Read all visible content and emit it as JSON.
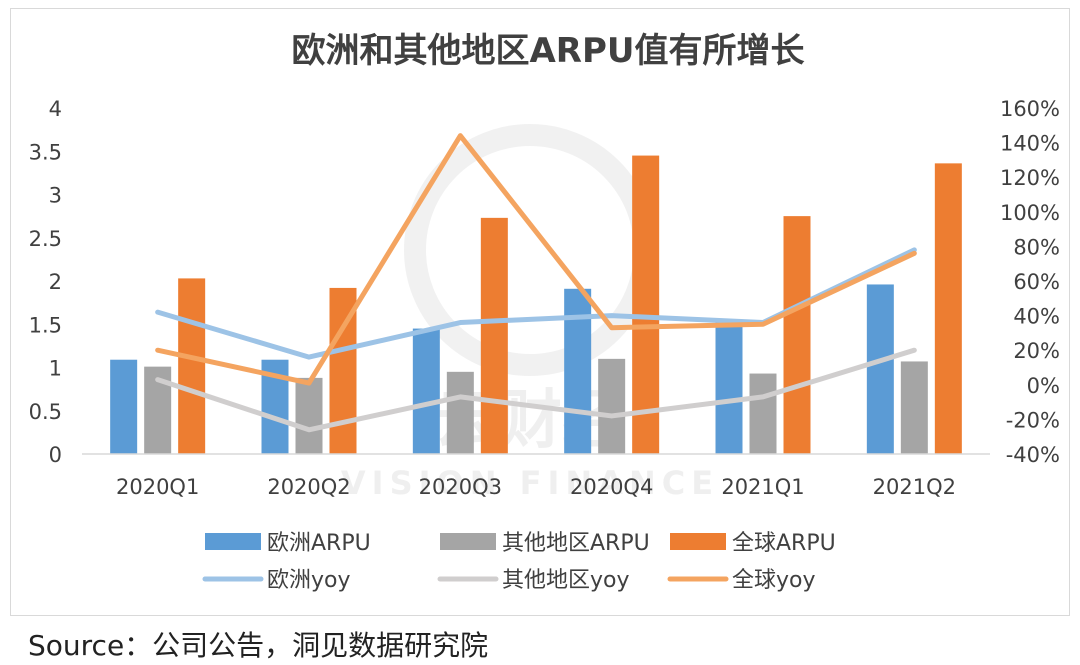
{
  "chart_data": {
    "type": "bar",
    "title": "欧洲和其他地区ARPU值有所增长",
    "categories": [
      "2020Q1",
      "2020Q2",
      "2020Q3",
      "2020Q4",
      "2021Q1",
      "2021Q2"
    ],
    "y_left": {
      "ylim": [
        0,
        4
      ],
      "ticks": [
        "0",
        "0.5",
        "1",
        "1.5",
        "2",
        "2.5",
        "3",
        "3.5",
        "4"
      ]
    },
    "y_right": {
      "ylim": [
        -40,
        160
      ],
      "ticks": [
        "-40%",
        "-20%",
        "0%",
        "20%",
        "40%",
        "60%",
        "80%",
        "100%",
        "120%",
        "140%",
        "160%"
      ]
    },
    "series": [
      {
        "name": "欧洲ARPU",
        "kind": "bar",
        "axis": "left",
        "color": "#5b9bd5",
        "values": [
          1.09,
          1.09,
          1.45,
          1.91,
          1.55,
          1.96
        ]
      },
      {
        "name": "其他地区ARPU",
        "kind": "bar",
        "axis": "left",
        "color": "#a5a5a5",
        "values": [
          1.01,
          0.88,
          0.95,
          1.1,
          0.93,
          1.07
        ]
      },
      {
        "name": "全球ARPU",
        "kind": "bar",
        "axis": "left",
        "color": "#ed7d31",
        "values": [
          2.03,
          1.92,
          2.73,
          3.45,
          2.75,
          3.36
        ]
      },
      {
        "name": "欧洲yoy",
        "kind": "line",
        "axis": "right",
        "color": "#9dc3e6",
        "values": [
          42,
          16,
          36,
          40,
          36,
          78
        ]
      },
      {
        "name": "其他地区yoy",
        "kind": "line",
        "axis": "right",
        "color": "#d0cece",
        "values": [
          3,
          -26,
          -7,
          -18,
          -7,
          20
        ]
      },
      {
        "name": "全球yoy",
        "kind": "line",
        "axis": "right",
        "color": "#f4a460",
        "values": [
          20,
          1,
          144,
          33,
          35,
          76
        ]
      }
    ],
    "legend": "bottom",
    "grid": false
  },
  "watermark": {
    "cn": "云财经",
    "en": "VISION FINANCE",
    "color": "#e0e0e0"
  },
  "source_text": "Source：公司公告，洞见数据研究院"
}
